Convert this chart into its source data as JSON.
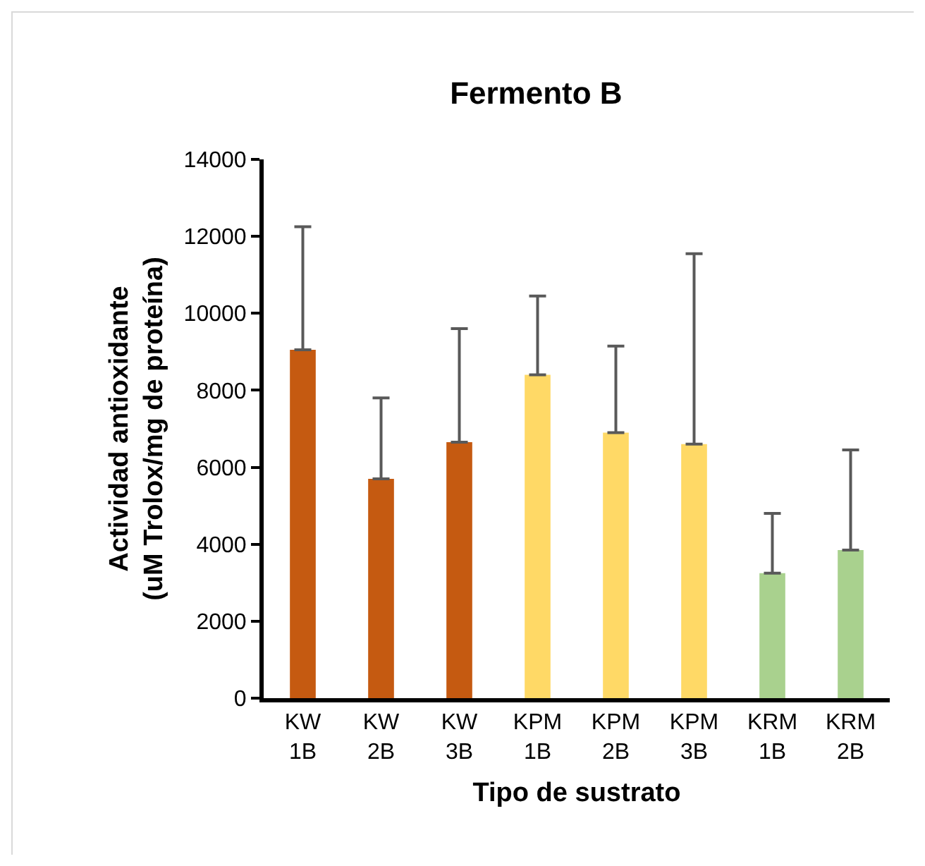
{
  "chart_data": {
    "type": "bar",
    "title": "Fermento B",
    "xlabel": "Tipo de sustrato",
    "ylabel": "Actividad antioxidante\n(uM Trolox/mg de proteína)",
    "categories": [
      "KW 1B",
      "KW 2B",
      "KW 3B",
      "KPM 1B",
      "KPM 2B",
      "KPM 3B",
      "KRM 1B",
      "KRM 2B"
    ],
    "values": [
      9050,
      5700,
      6650,
      8400,
      6900,
      6600,
      3250,
      3850
    ],
    "colors": [
      "#c55a11",
      "#c55a11",
      "#c55a11",
      "#ffd966",
      "#ffd966",
      "#ffd966",
      "#a9d18e",
      "#a9d18e"
    ],
    "errors": [
      [
        9050,
        12250
      ],
      [
        5700,
        7800
      ],
      [
        6650,
        9600
      ],
      [
        8400,
        10450
      ],
      [
        6900,
        9150
      ],
      [
        6600,
        11550
      ],
      [
        3250,
        4800
      ],
      [
        3850,
        6450
      ]
    ],
    "ylim": [
      0,
      14000
    ],
    "yticks": [
      0,
      2000,
      4000,
      6000,
      8000,
      10000,
      12000,
      14000
    ],
    "grid": false
  }
}
